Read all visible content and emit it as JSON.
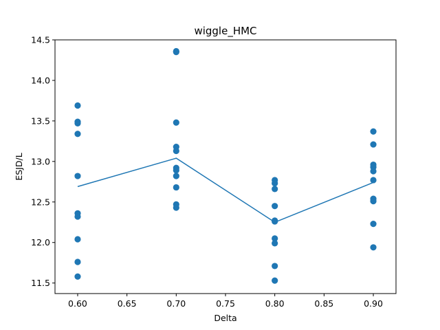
{
  "chart_data": {
    "type": "scatter",
    "title": "wiggle_HMC",
    "xlabel": "Delta",
    "ylabel": "ESJD/L",
    "xlim": [
      0.577,
      0.923
    ],
    "ylim": [
      11.37,
      14.5
    ],
    "xticks": [
      0.6,
      0.65,
      0.7,
      0.75,
      0.8,
      0.85,
      0.9
    ],
    "xtick_labels": [
      "0.60",
      "0.65",
      "0.70",
      "0.75",
      "0.80",
      "0.85",
      "0.90"
    ],
    "yticks": [
      11.5,
      12.0,
      12.5,
      13.0,
      13.5,
      14.0,
      14.5
    ],
    "ytick_labels": [
      "11.5",
      "12.0",
      "12.5",
      "13.0",
      "13.5",
      "14.0",
      "14.5"
    ],
    "grid": false,
    "color": "#1f77b4",
    "series": [
      {
        "kind": "scatter",
        "points": [
          [
            0.6,
            13.69
          ],
          [
            0.6,
            13.49
          ],
          [
            0.6,
            13.47
          ],
          [
            0.6,
            13.34
          ],
          [
            0.6,
            12.82
          ],
          [
            0.6,
            12.36
          ],
          [
            0.6,
            12.32
          ],
          [
            0.6,
            12.04
          ],
          [
            0.6,
            11.76
          ],
          [
            0.6,
            11.58
          ],
          [
            0.7,
            14.36
          ],
          [
            0.7,
            14.35
          ],
          [
            0.7,
            13.48
          ],
          [
            0.7,
            13.18
          ],
          [
            0.7,
            13.13
          ],
          [
            0.7,
            12.92
          ],
          [
            0.7,
            12.89
          ],
          [
            0.7,
            12.82
          ],
          [
            0.7,
            12.68
          ],
          [
            0.7,
            12.47
          ],
          [
            0.7,
            12.43
          ],
          [
            0.8,
            12.77
          ],
          [
            0.8,
            12.73
          ],
          [
            0.8,
            12.66
          ],
          [
            0.8,
            12.45
          ],
          [
            0.8,
            12.27
          ],
          [
            0.8,
            12.26
          ],
          [
            0.8,
            12.05
          ],
          [
            0.8,
            11.99
          ],
          [
            0.8,
            11.71
          ],
          [
            0.8,
            11.53
          ],
          [
            0.9,
            13.37
          ],
          [
            0.9,
            13.21
          ],
          [
            0.9,
            12.96
          ],
          [
            0.9,
            12.93
          ],
          [
            0.9,
            12.88
          ],
          [
            0.9,
            12.77
          ],
          [
            0.9,
            12.54
          ],
          [
            0.9,
            12.51
          ],
          [
            0.9,
            12.23
          ],
          [
            0.9,
            11.94
          ]
        ]
      },
      {
        "kind": "line",
        "x": [
          0.6,
          0.7,
          0.8,
          0.9
        ],
        "y": [
          12.69,
          13.04,
          12.25,
          12.74
        ]
      }
    ]
  }
}
